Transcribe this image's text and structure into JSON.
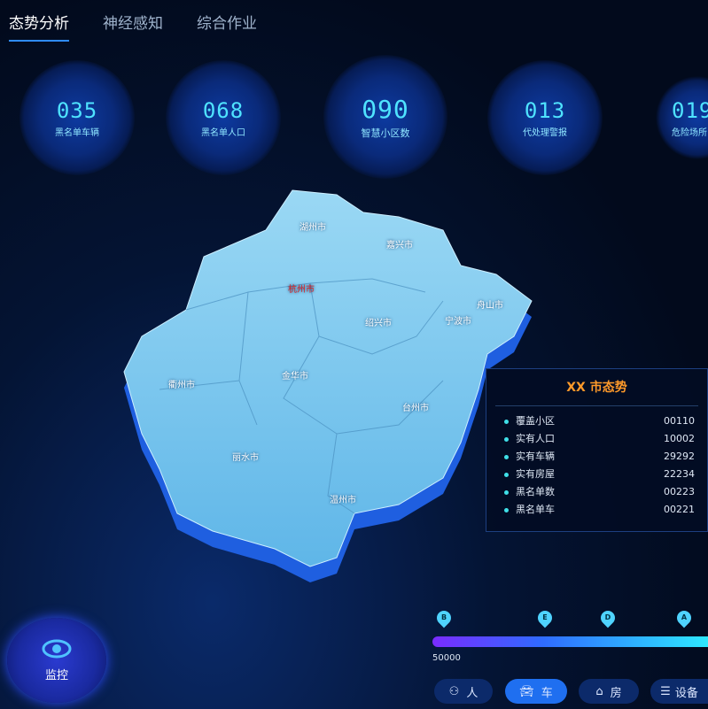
{
  "tabs": [
    {
      "label": "态势分析",
      "active": true
    },
    {
      "label": "神经感知"
    },
    {
      "label": "综合作业"
    }
  ],
  "stats": [
    {
      "value": "035",
      "label": "黑名单车辆"
    },
    {
      "value": "068",
      "label": "黑名单人口"
    },
    {
      "value": "090",
      "label": "智慧小区数"
    },
    {
      "value": "013",
      "label": "代处理警报"
    },
    {
      "value": "019",
      "label": "危险场所"
    }
  ],
  "map": {
    "cities": [
      {
        "name": "湖州市"
      },
      {
        "name": "嘉兴市"
      },
      {
        "name": "杭州市",
        "highlight": "#e02020"
      },
      {
        "name": "舟山市"
      },
      {
        "name": "绍兴市"
      },
      {
        "name": "宁波市"
      },
      {
        "name": "衢州市"
      },
      {
        "name": "金华市"
      },
      {
        "name": "台州市"
      },
      {
        "name": "丽水市"
      },
      {
        "name": "温州市"
      }
    ]
  },
  "panel": {
    "title": "XX 市态势",
    "rows": [
      {
        "label": "覆盖小区",
        "value": "00110"
      },
      {
        "label": "实有人口",
        "value": "10002"
      },
      {
        "label": "实有车辆",
        "value": "29292"
      },
      {
        "label": "实有房屋",
        "value": "22234"
      },
      {
        "label": "黑名单数",
        "value": "00223"
      },
      {
        "label": "黑名单车",
        "value": "00221"
      }
    ]
  },
  "monitor": {
    "label": "监控",
    "icon": "eye-icon"
  },
  "timeline": {
    "markers": [
      "B",
      "E",
      "D",
      "A"
    ],
    "start_label": "50000"
  },
  "filters": [
    {
      "label": "人",
      "icon": "person-icon"
    },
    {
      "label": "车",
      "icon": "car-icon",
      "active": true
    },
    {
      "label": "房",
      "icon": "house-icon"
    },
    {
      "label": "设备",
      "icon": "device-icon"
    }
  ]
}
